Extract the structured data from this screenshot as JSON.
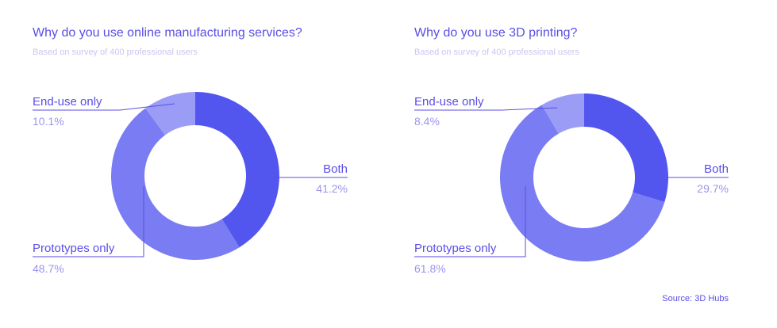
{
  "chart_data": [
    {
      "type": "pie",
      "title": "Why do you use online manufacturing services?",
      "subtitle": "Based on survey of 400 professional users",
      "slices": [
        {
          "label": "Both",
          "value": 41.2,
          "display": "41.2%",
          "color": "#5356ee"
        },
        {
          "label": "Prototypes only",
          "value": 48.7,
          "display": "48.7%",
          "color": "#797cf2"
        },
        {
          "label": "End-use only",
          "value": 10.1,
          "display": "10.1%",
          "color": "#9b9cf5"
        }
      ]
    },
    {
      "type": "pie",
      "title": "Why do you use 3D printing?",
      "subtitle": "Based on survey of 400 professional users",
      "slices": [
        {
          "label": "Both",
          "value": 29.7,
          "display": "29.7%",
          "color": "#5356ee"
        },
        {
          "label": "Prototypes only",
          "value": 61.8,
          "display": "61.8%",
          "color": "#797cf2"
        },
        {
          "label": "End-use only",
          "value": 8.4,
          "display": "8.4%",
          "color": "#9b9cf5"
        }
      ]
    }
  ],
  "source": "Source: 3D Hubs",
  "colors": {
    "text": "#5a4ee6",
    "subtitle": "#c9c6f0",
    "percent": "#9b95ee"
  }
}
